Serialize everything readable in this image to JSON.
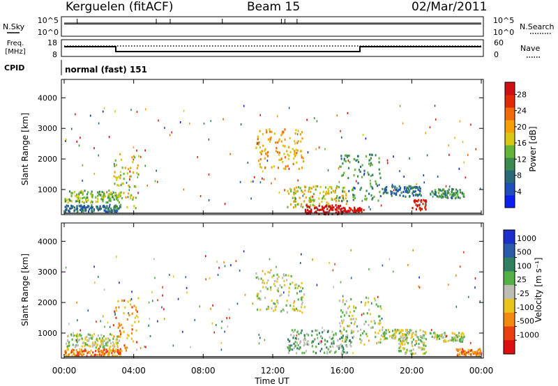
{
  "header": {
    "station": "Kerguelen (fitACF)",
    "beam": "Beam 15",
    "date": "02/Mar/2011"
  },
  "noise_panel": {
    "left_label": "N.Sky",
    "left_ticks": [
      "10^5",
      "10^0"
    ],
    "right_label": "N.Search",
    "right_ticks": [
      "10^5",
      "10^0"
    ]
  },
  "freq_panel": {
    "left_label_line1": "Freq.",
    "left_label_line2": "[MHz]",
    "left_ticks": [
      "18",
      "8"
    ],
    "right_label": "Nave",
    "right_ticks": [
      "60",
      "0"
    ]
  },
  "cpid": {
    "label": "CPID",
    "value": "normal (fast) 151"
  },
  "x_axis": {
    "ticks": [
      "00:00",
      "04:00",
      "08:00",
      "12:00",
      "16:00",
      "20:00",
      "00:00"
    ],
    "title": "Time UT"
  },
  "colors": {
    "power_scale": [
      "#0b1ff0",
      "#1f4fb8",
      "#2a6a78",
      "#3c8a50",
      "#64b43a",
      "#d6c815",
      "#f5a00a",
      "#ef6a08",
      "#e02a05",
      "#d01010"
    ],
    "velocity_scale": [
      "#1c2fc8",
      "#2a5aa8",
      "#2f7f60",
      "#56b048",
      "#bdbdb5",
      "#e8c420",
      "#f08a10",
      "#e84010",
      "#dc1010"
    ]
  },
  "chart_data": [
    {
      "type": "heatmap",
      "name": "power",
      "ylabel": "Slant Range [km]",
      "yticks": [
        1000,
        2000,
        3000,
        4000
      ],
      "ylim": [
        180,
        4600
      ],
      "xlim_hours": [
        0,
        24
      ],
      "colorbar": {
        "label": "Power [dB]",
        "ticks": [
          "4",
          "8",
          "12",
          "16",
          "20",
          "24",
          "28"
        ],
        "range": [
          0,
          31
        ]
      },
      "regions": [
        {
          "t": [
            0.0,
            3.2
          ],
          "r": [
            600,
            1000
          ],
          "level": 4
        },
        {
          "t": [
            0.0,
            3.2
          ],
          "r": [
            300,
            520
          ],
          "level": 2
        },
        {
          "t": [
            2.8,
            4.3
          ],
          "r": [
            400,
            2200
          ],
          "level": 5
        },
        {
          "t": [
            11.0,
            13.8
          ],
          "r": [
            1700,
            3050
          ],
          "level": 6
        },
        {
          "t": [
            12.8,
            16.2
          ],
          "r": [
            450,
            1150
          ],
          "level": 5
        },
        {
          "t": [
            13.8,
            16.0
          ],
          "r": [
            220,
            520
          ],
          "level": 10
        },
        {
          "t": [
            16.0,
            17.2
          ],
          "r": [
            280,
            440
          ],
          "level": 9
        },
        {
          "t": [
            15.8,
            18.2
          ],
          "r": [
            650,
            2200
          ],
          "level": 3
        },
        {
          "t": [
            18.2,
            20.5
          ],
          "r": [
            800,
            1150
          ],
          "level": 2
        },
        {
          "t": [
            20.0,
            20.8
          ],
          "r": [
            350,
            700
          ],
          "level": 9
        },
        {
          "t": [
            21.0,
            23.0
          ],
          "r": [
            750,
            1050
          ],
          "level": 3
        }
      ]
    },
    {
      "type": "heatmap",
      "name": "velocity",
      "ylabel": "Slant Range [km]",
      "yticks": [
        1000,
        2000,
        3000,
        4000
      ],
      "ylim": [
        180,
        4600
      ],
      "xlim_hours": [
        0,
        24
      ],
      "colorbar": {
        "label": "Velocity [m s⁻¹]",
        "ticks": [
          "1000",
          "500",
          "100",
          "25",
          "-25",
          "-100",
          "-500",
          "-1000"
        ]
      },
      "regions": [
        {
          "t": [
            0.0,
            3.2
          ],
          "r": [
            550,
            1000
          ],
          "level": 4
        },
        {
          "t": [
            0.0,
            3.2
          ],
          "r": [
            280,
            520
          ],
          "level": 6
        },
        {
          "t": [
            2.8,
            4.3
          ],
          "r": [
            400,
            2200
          ],
          "level": 6
        },
        {
          "t": [
            11.0,
            13.8
          ],
          "r": [
            1700,
            3050
          ],
          "level": 4
        },
        {
          "t": [
            12.8,
            16.6
          ],
          "r": [
            350,
            1150
          ],
          "level": 3
        },
        {
          "t": [
            15.8,
            18.2
          ],
          "r": [
            650,
            2200
          ],
          "level": 4
        },
        {
          "t": [
            18.2,
            20.8
          ],
          "r": [
            800,
            1150
          ],
          "level": 4
        },
        {
          "t": [
            19.2,
            20.8
          ],
          "r": [
            350,
            800
          ],
          "level": 4
        },
        {
          "t": [
            21.0,
            23.0
          ],
          "r": [
            750,
            1050
          ],
          "level": 4
        },
        {
          "t": [
            22.5,
            24.0
          ],
          "r": [
            280,
            520
          ],
          "level": 6
        }
      ]
    }
  ]
}
